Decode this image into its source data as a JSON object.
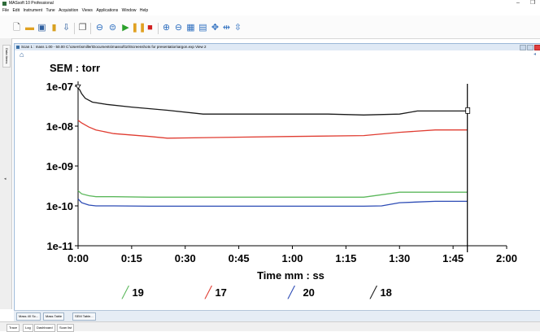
{
  "window": {
    "title": "MASsoft 10 Professional",
    "minimize": "–",
    "restore": "❐"
  },
  "menu": [
    "File",
    "Edit",
    "Instrument",
    "Tune",
    "Acquisition",
    "Views",
    "Applications",
    "Window",
    "Help"
  ],
  "sidebar": {
    "tab_label": "Data Items"
  },
  "document": {
    "title": "Scan 1 : mass 1.00 - 50.00  C:\\Users\\smiller\\Documents\\massoft10\\Screenshots for presentation\\argon.exp View 2"
  },
  "chart_data": {
    "type": "line",
    "title": "SEM : torr",
    "xlabel": "Time mm : ss",
    "ylabel": "",
    "x_ticks": [
      "0:00",
      "0:15",
      "0:30",
      "0:45",
      "1:00",
      "1:15",
      "1:30",
      "1:45",
      "2:00"
    ],
    "xlim_seconds": [
      0,
      120
    ],
    "y_scale": "log",
    "y_ticks": [
      "1e-07",
      "1e-08",
      "1e-09",
      "1e-10",
      "1e-11"
    ],
    "ylim": [
      1e-11,
      1e-07
    ],
    "cursor_seconds": 109,
    "grid": false,
    "legend_position": "bottom",
    "series": [
      {
        "name": "19",
        "color": "#5cb85c",
        "x": [
          0,
          1,
          3,
          5,
          10,
          20,
          40,
          60,
          80,
          85,
          90,
          100,
          109
        ],
        "y": [
          2.4e-10,
          2e-10,
          1.8e-10,
          1.7e-10,
          1.7e-10,
          1.65e-10,
          1.65e-10,
          1.65e-10,
          1.65e-10,
          1.9e-10,
          2.2e-10,
          2.2e-10,
          2.2e-10
        ]
      },
      {
        "name": "17",
        "color": "#e03c31",
        "x": [
          0,
          1,
          3,
          5,
          10,
          20,
          25,
          40,
          60,
          80,
          90,
          100,
          109
        ],
        "y": [
          1.4e-08,
          1.2e-08,
          9.5e-09,
          8e-09,
          6.5e-09,
          5.5e-09,
          5e-09,
          5.2e-09,
          5.5e-09,
          5.8e-09,
          7e-09,
          8e-09,
          8e-09
        ]
      },
      {
        "name": "20",
        "color": "#2c4bb5",
        "x": [
          0,
          1,
          3,
          5,
          10,
          20,
          40,
          60,
          80,
          85,
          90,
          100,
          109
        ],
        "y": [
          1.5e-10,
          1.2e-10,
          1.05e-10,
          1e-10,
          1e-10,
          9.8e-11,
          9.8e-11,
          9.8e-11,
          9.8e-11,
          1e-10,
          1.2e-10,
          1.3e-10,
          1.3e-10
        ]
      },
      {
        "name": "18",
        "color": "#1a1a1a",
        "x": [
          0,
          0.5,
          1,
          2,
          4,
          8,
          15,
          25,
          35,
          50,
          70,
          80,
          90,
          95,
          100,
          109
        ],
        "y": [
          9e-08,
          8e-08,
          6.5e-08,
          5e-08,
          4e-08,
          3.5e-08,
          3e-08,
          2.5e-08,
          2e-08,
          2e-08,
          2e-08,
          1.9e-08,
          2e-08,
          2.4e-08,
          2.4e-08,
          2.4e-08
        ]
      }
    ]
  },
  "legend": [
    {
      "label": "19",
      "color": "#5cb85c"
    },
    {
      "label": "17",
      "color": "#e03c31"
    },
    {
      "label": "20",
      "color": "#2c4bb5"
    },
    {
      "label": "18",
      "color": "#1a1a1a"
    }
  ],
  "bottom_tabs": [
    "Mass 40 Sc...",
    "Mass Table",
    "SEM Table..."
  ],
  "status_tabs": [
    "Trace",
    "Log",
    "Dashboard",
    "Scan list"
  ]
}
